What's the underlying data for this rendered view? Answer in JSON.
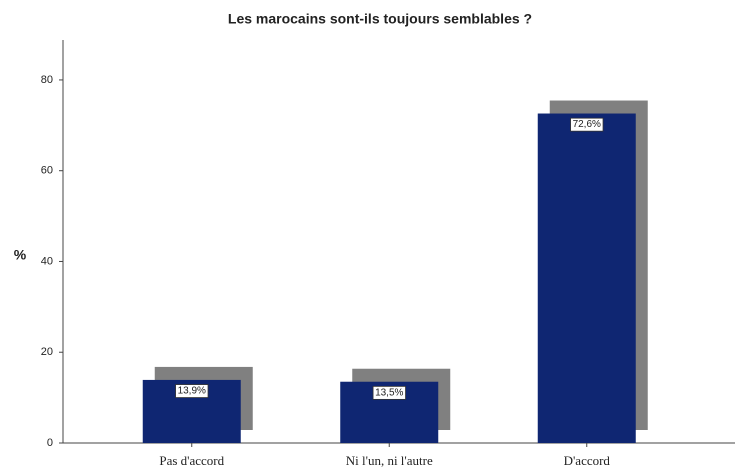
{
  "chart_data": {
    "type": "bar",
    "title": "Les marocains sont-ils toujours semblables ?",
    "y_label": "%",
    "categories": [
      "Pas d'accord",
      "Ni l'un, ni l'autre",
      "D'accord"
    ],
    "values": [
      13.9,
      13.5,
      72.6
    ],
    "value_labels": [
      "13,9%",
      "13,5%",
      "72,6%"
    ],
    "color": "#0f2672",
    "shadow_color": "#808080",
    "ylim": [
      0,
      88.8
    ],
    "yticks": [
      0,
      20,
      40,
      60,
      80
    ],
    "grid": false
  }
}
